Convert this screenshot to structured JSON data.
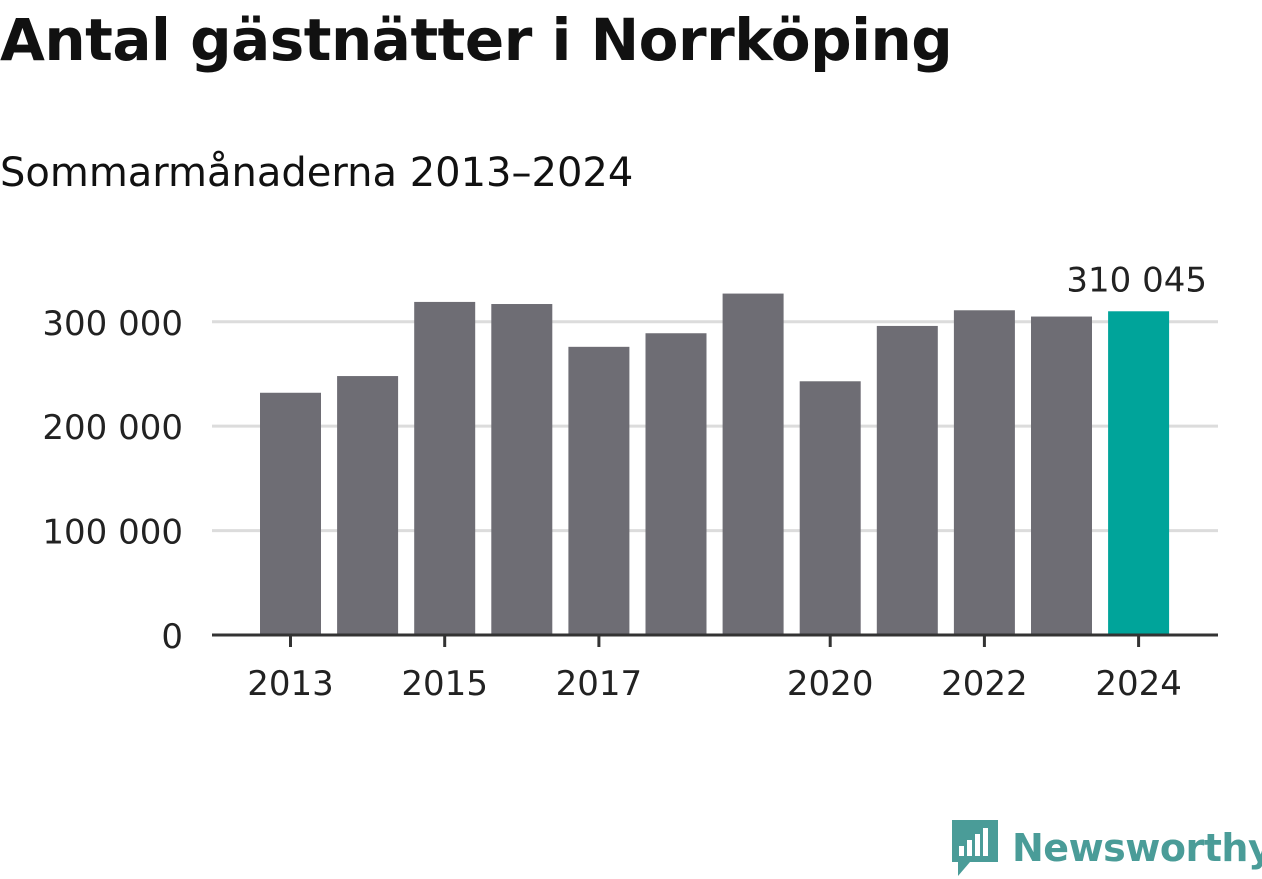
{
  "title": "Antal gästnätter i Norrköping",
  "subtitle": "Sommarmånaderna 2013–2024",
  "logo_text": "Newsworthy",
  "colors": {
    "bar": "#6e6d74",
    "highlight": "#00a49a",
    "grid": "#dcdcdc",
    "axis": "#333333",
    "text": "#222222",
    "logo": "#4a9c98"
  },
  "chart_data": {
    "type": "bar",
    "categories": [
      "2013",
      "2014",
      "2015",
      "2016",
      "2017",
      "2018",
      "2019",
      "2020",
      "2021",
      "2022",
      "2023",
      "2024"
    ],
    "values": [
      232000,
      248000,
      319000,
      317000,
      276000,
      289000,
      327000,
      243000,
      296000,
      311000,
      305000,
      310045
    ],
    "highlight_index": 11,
    "highlight_label": "310 045",
    "ylim": [
      0,
      340000
    ],
    "yticks": [
      0,
      100000,
      200000,
      300000
    ],
    "ytick_labels": [
      "0",
      "100 000",
      "200 000",
      "300 000"
    ],
    "xtick_labels": [
      "2013",
      "2015",
      "2017",
      "2020",
      "2022",
      "2024"
    ],
    "grid": true,
    "legend": "none"
  }
}
